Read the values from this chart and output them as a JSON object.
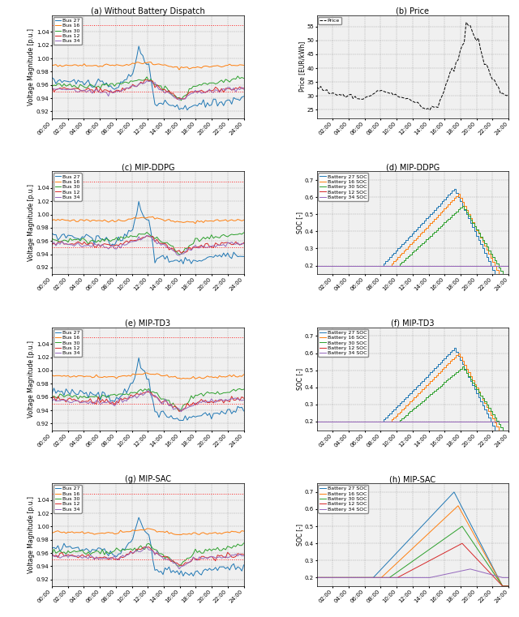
{
  "title_a": "(a) Without Battery Dispatch",
  "title_b": "(b) Price",
  "title_c": "(c) MIP-DDPG",
  "title_d": "(d) MIP-DDPG",
  "title_e": "(e) MIP-TD3",
  "title_f": "(f) MIP-TD3",
  "title_g": "(g) MIP-SAC",
  "title_h": "(h) MIP-SAC",
  "time_labels_v": [
    "00:00",
    "02:00",
    "04:00",
    "06:00",
    "08:00",
    "10:00",
    "12:00",
    "14:00",
    "16:00",
    "18:00",
    "20:00",
    "22:00",
    "24:00"
  ],
  "time_labels_soc": [
    "02:00",
    "04:00",
    "06:00",
    "08:00",
    "10:00",
    "12:00",
    "14:00",
    "16:00",
    "18:00",
    "20:00",
    "22:00",
    "24:00"
  ],
  "voltage_ylim": [
    0.91,
    1.065
  ],
  "voltage_yticks": [
    0.92,
    0.94,
    0.96,
    0.98,
    1.0,
    1.02,
    1.04
  ],
  "voltage_upper_limit": 1.05,
  "voltage_lower_limit": 0.95,
  "price_ylim": [
    22,
    59
  ],
  "price_yticks": [
    25,
    30,
    35,
    40,
    45,
    50,
    55
  ],
  "soc_ylim": [
    0.15,
    0.75
  ],
  "soc_yticks": [
    0.2,
    0.3,
    0.4,
    0.5,
    0.6,
    0.7
  ],
  "colors": {
    "bus27": "#1f77b4",
    "bus16": "#ff7f0e",
    "bus30": "#2ca02c",
    "bus12": "#d62728",
    "bus34": "#9467bd"
  },
  "ylabel_voltage": "Voltage Magnitude [p.u.]",
  "ylabel_price": "Price [EUR/kWh]",
  "ylabel_soc": "SOC [-]",
  "bg_color": "#f0f0f0"
}
